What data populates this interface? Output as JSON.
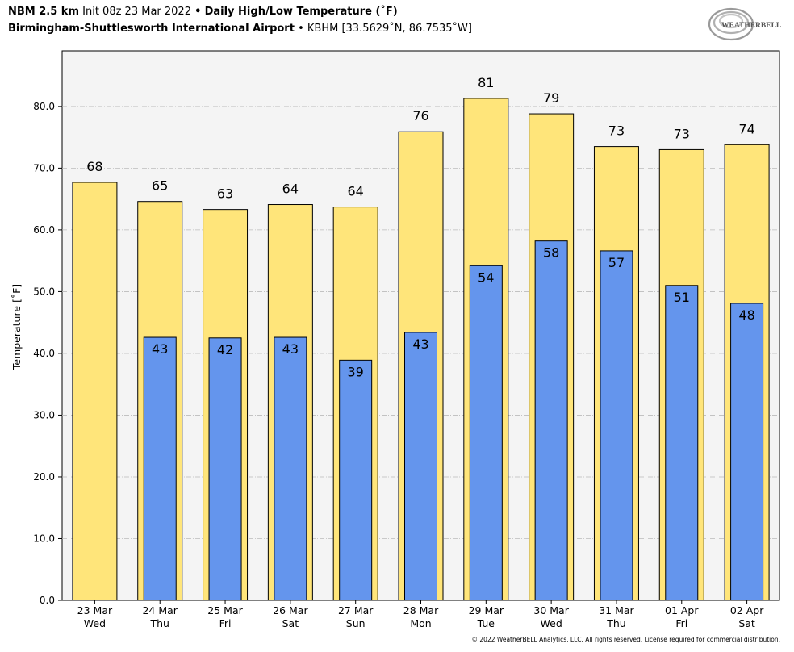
{
  "header": {
    "line1_model": "NBM 2.5 km",
    "line1_init": "Init 08z 23 Mar 2022",
    "line1_sep": "•",
    "line1_product": "Daily High/Low Temperature (˚F)",
    "line2_station": "Birmingham-Shuttlesworth International Airport",
    "line2_sep": "•",
    "line2_code": "KBHM [33.5629˚N, 86.7535˚W]"
  },
  "logo": {
    "text": "WEATHERBELL",
    "icon": "weatherbell-swirl-logo"
  },
  "footer": {
    "copyright": "© 2022 WeatherBELL Analytics, LLC. All rights reserved. License required for commercial distribution."
  },
  "colors": {
    "high": "#ffe57a",
    "low": "#6495ed",
    "plot_bg": "#f4f4f4",
    "grid": "#bbbbbb"
  },
  "chart_data": {
    "type": "bar",
    "title": "Daily High/Low Temperature (˚F)",
    "ylabel": "Temperature [˚F]",
    "xlabel": "",
    "ylim": [
      0,
      89
    ],
    "yticks": [
      "0.0",
      "10.0",
      "20.0",
      "30.0",
      "40.0",
      "50.0",
      "60.0",
      "70.0",
      "80.0"
    ],
    "grid": true,
    "categories": [
      {
        "date": "23 Mar",
        "day": "Wed"
      },
      {
        "date": "24 Mar",
        "day": "Thu"
      },
      {
        "date": "25 Mar",
        "day": "Fri"
      },
      {
        "date": "26 Mar",
        "day": "Sat"
      },
      {
        "date": "27 Mar",
        "day": "Sun"
      },
      {
        "date": "28 Mar",
        "day": "Mon"
      },
      {
        "date": "29 Mar",
        "day": "Tue"
      },
      {
        "date": "30 Mar",
        "day": "Wed"
      },
      {
        "date": "31 Mar",
        "day": "Thu"
      },
      {
        "date": "01 Apr",
        "day": "Fri"
      },
      {
        "date": "02 Apr",
        "day": "Sat"
      }
    ],
    "series": [
      {
        "key": "high",
        "values": [
          67.7,
          64.6,
          63.3,
          64.1,
          63.7,
          75.9,
          81.3,
          78.8,
          73.5,
          73.0,
          73.8
        ],
        "labels": [
          "68",
          "65",
          "63",
          "64",
          "64",
          "76",
          "81",
          "79",
          "73",
          "73",
          "74"
        ]
      },
      {
        "key": "low",
        "values": [
          null,
          42.6,
          42.5,
          42.6,
          38.9,
          43.4,
          54.2,
          58.2,
          56.6,
          51.0,
          48.1
        ],
        "labels": [
          null,
          "43",
          "42",
          "43",
          "39",
          "43",
          "54",
          "58",
          "57",
          "51",
          "48"
        ]
      }
    ]
  }
}
